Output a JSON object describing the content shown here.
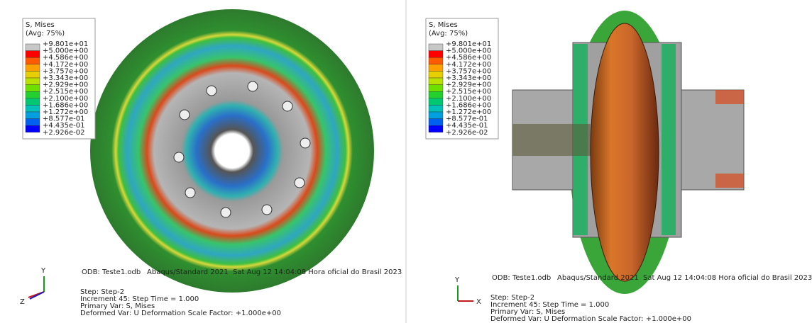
{
  "panels": [
    {
      "legend": {
        "title": "S, Mises",
        "subtitle": "(Avg: 75%)",
        "labels": [
          "+9.801e+01",
          "+5.000e+00",
          "+4.586e+00",
          "+4.172e+00",
          "+3.757e+00",
          "+3.343e+00",
          "+2.929e+00",
          "+2.515e+00",
          "+2.100e+00",
          "+1.686e+00",
          "+1.272e+00",
          "+8.577e-01",
          "+4.435e-01",
          "+2.926e-02"
        ]
      },
      "info": {
        "odb": "ODB: Teste1.odb",
        "solver": "Abaqus/Standard 2021",
        "date": "Sat Aug 12 14:04:08 Hora oficial do Brasil 2023"
      },
      "step": [
        "Step: Step-2",
        "Increment     45: Step Time =    1.000",
        "Primary Var: S, Mises",
        "Deformed Var: U   Deformation Scale Factor: +1.000e+00"
      ],
      "triad": {
        "up": "Y",
        "side": "Z"
      }
    },
    {
      "legend": {
        "title": "S, Mises",
        "subtitle": "(Avg: 75%)",
        "labels": [
          "+9.801e+01",
          "+5.000e+00",
          "+4.586e+00",
          "+4.172e+00",
          "+3.757e+00",
          "+3.343e+00",
          "+2.929e+00",
          "+2.515e+00",
          "+2.100e+00",
          "+1.686e+00",
          "+1.272e+00",
          "+8.577e-01",
          "+4.435e-01",
          "+2.926e-02"
        ]
      },
      "info": {
        "odb": "ODB: Teste1.odb",
        "solver": "Abaqus/Standard 2021",
        "date": "Sat Aug 12 14:04:08 Hora oficial do Brasil 2023"
      },
      "step": [
        "Step: Step-2",
        "Increment     45: Step Time =    1.000",
        "Primary Var: S, Mises",
        "Deformed Var: U   Deformation Scale Factor: +1.000e+00"
      ],
      "triad": {
        "up": "Y",
        "side": "X"
      }
    }
  ]
}
